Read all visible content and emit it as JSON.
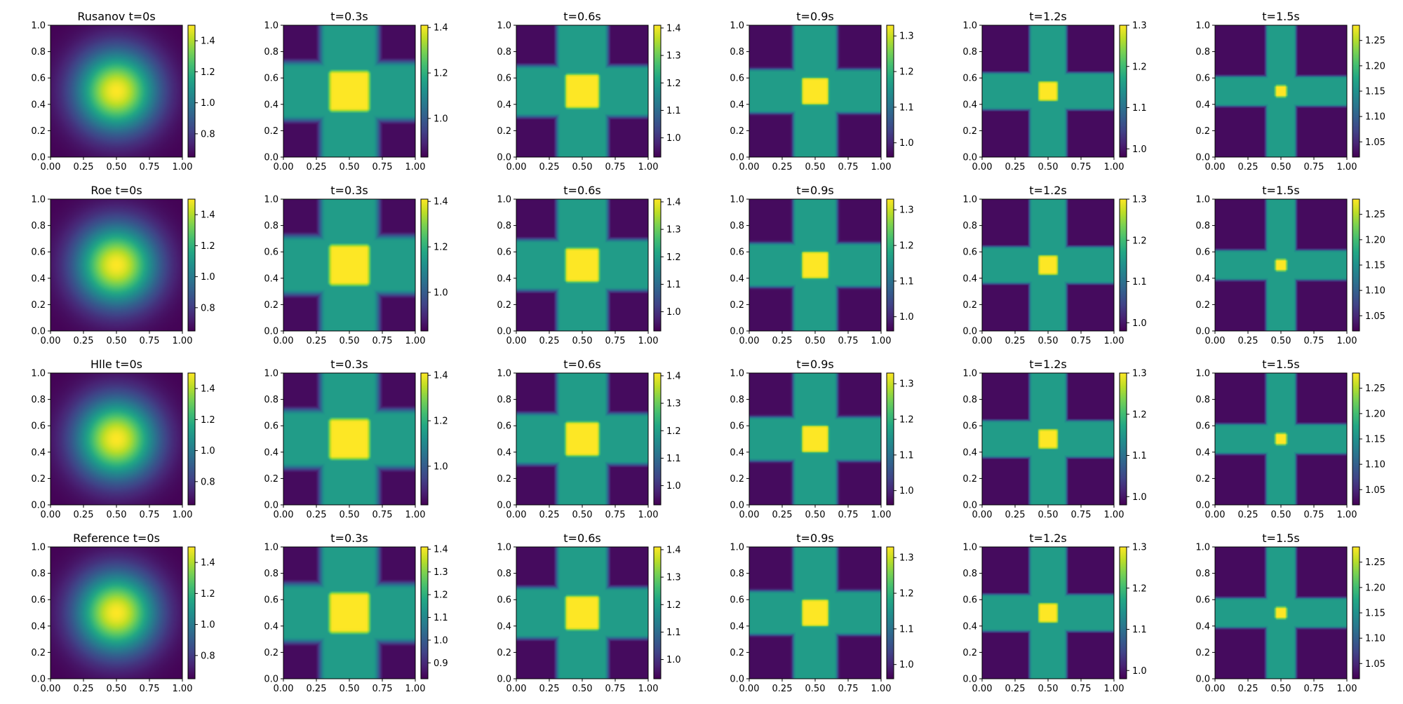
{
  "chart_data": {
    "type": "heatmap",
    "grid": {
      "rows": 4,
      "cols": 6
    },
    "colormap": "viridis",
    "axes": {
      "xlim": [
        0.0,
        1.0
      ],
      "ylim": [
        0.0,
        1.0
      ],
      "xticks": [
        "0.00",
        "0.25",
        "0.50",
        "0.75",
        "1.00"
      ],
      "yticks": [
        "0.0",
        "0.2",
        "0.4",
        "0.6",
        "0.8",
        "1.0"
      ]
    },
    "rows": [
      {
        "method": "Rusanov",
        "panels": [
          {
            "title": "Rusanov t=0s",
            "time": 0.0,
            "clim": [
              0.65,
              1.5
            ],
            "cbar_ticks": [
              "0.8",
              "1.0",
              "1.2",
              "1.4"
            ]
          },
          {
            "title": "t=0.3s",
            "time": 0.3,
            "clim": [
              0.83,
              1.41
            ],
            "cbar_ticks": [
              "1.0",
              "1.2",
              "1.4"
            ]
          },
          {
            "title": "t=0.6s",
            "time": 0.6,
            "clim": [
              0.93,
              1.41
            ],
            "cbar_ticks": [
              "1.0",
              "1.1",
              "1.2",
              "1.3",
              "1.4"
            ]
          },
          {
            "title": "t=0.9s",
            "time": 0.9,
            "clim": [
              0.96,
              1.33
            ],
            "cbar_ticks": [
              "1.0",
              "1.1",
              "1.2",
              "1.3"
            ]
          },
          {
            "title": "t=1.2s",
            "time": 1.2,
            "clim": [
              0.98,
              1.3
            ],
            "cbar_ticks": [
              "1.0",
              "1.1",
              "1.2",
              "1.3"
            ]
          },
          {
            "title": "t=1.5s",
            "time": 1.5,
            "clim": [
              1.02,
              1.28
            ],
            "cbar_ticks": [
              "1.05",
              "1.10",
              "1.15",
              "1.20",
              "1.25"
            ]
          }
        ]
      },
      {
        "method": "Roe",
        "panels": [
          {
            "title": "Roe t=0s",
            "time": 0.0,
            "clim": [
              0.65,
              1.5
            ],
            "cbar_ticks": [
              "0.8",
              "1.0",
              "1.2",
              "1.4"
            ]
          },
          {
            "title": "t=0.3s",
            "time": 0.3,
            "clim": [
              0.83,
              1.41
            ],
            "cbar_ticks": [
              "1.0",
              "1.2",
              "1.4"
            ]
          },
          {
            "title": "t=0.6s",
            "time": 0.6,
            "clim": [
              0.93,
              1.41
            ],
            "cbar_ticks": [
              "1.0",
              "1.1",
              "1.2",
              "1.3",
              "1.4"
            ]
          },
          {
            "title": "t=0.9s",
            "time": 0.9,
            "clim": [
              0.96,
              1.33
            ],
            "cbar_ticks": [
              "1.0",
              "1.1",
              "1.2",
              "1.3"
            ]
          },
          {
            "title": "t=1.2s",
            "time": 1.2,
            "clim": [
              0.98,
              1.3
            ],
            "cbar_ticks": [
              "1.0",
              "1.1",
              "1.2",
              "1.3"
            ]
          },
          {
            "title": "t=1.5s",
            "time": 1.5,
            "clim": [
              1.02,
              1.28
            ],
            "cbar_ticks": [
              "1.05",
              "1.10",
              "1.15",
              "1.20",
              "1.25"
            ]
          }
        ]
      },
      {
        "method": "Hlle",
        "panels": [
          {
            "title": "Hlle t=0s",
            "time": 0.0,
            "clim": [
              0.65,
              1.5
            ],
            "cbar_ticks": [
              "0.8",
              "1.0",
              "1.2",
              "1.4"
            ]
          },
          {
            "title": "t=0.3s",
            "time": 0.3,
            "clim": [
              0.83,
              1.41
            ],
            "cbar_ticks": [
              "1.0",
              "1.2",
              "1.4"
            ]
          },
          {
            "title": "t=0.6s",
            "time": 0.6,
            "clim": [
              0.93,
              1.41
            ],
            "cbar_ticks": [
              "1.0",
              "1.1",
              "1.2",
              "1.3",
              "1.4"
            ]
          },
          {
            "title": "t=0.9s",
            "time": 0.9,
            "clim": [
              0.96,
              1.33
            ],
            "cbar_ticks": [
              "1.0",
              "1.1",
              "1.2",
              "1.3"
            ]
          },
          {
            "title": "t=1.2s",
            "time": 1.2,
            "clim": [
              0.98,
              1.3
            ],
            "cbar_ticks": [
              "1.0",
              "1.1",
              "1.2",
              "1.3"
            ]
          },
          {
            "title": "t=1.5s",
            "time": 1.5,
            "clim": [
              1.02,
              1.28
            ],
            "cbar_ticks": [
              "1.05",
              "1.10",
              "1.15",
              "1.20",
              "1.25"
            ]
          }
        ]
      },
      {
        "method": "Reference",
        "panels": [
          {
            "title": "Reference t=0s",
            "time": 0.0,
            "clim": [
              0.65,
              1.5
            ],
            "cbar_ticks": [
              "0.8",
              "1.0",
              "1.2",
              "1.4"
            ]
          },
          {
            "title": "t=0.3s",
            "time": 0.3,
            "clim": [
              0.83,
              1.41
            ],
            "cbar_ticks": [
              "0.9",
              "1.0",
              "1.1",
              "1.2",
              "1.3",
              "1.4"
            ]
          },
          {
            "title": "t=0.6s",
            "time": 0.6,
            "clim": [
              0.93,
              1.41
            ],
            "cbar_ticks": [
              "1.0",
              "1.1",
              "1.2",
              "1.3",
              "1.4"
            ]
          },
          {
            "title": "t=0.9s",
            "time": 0.9,
            "clim": [
              0.96,
              1.33
            ],
            "cbar_ticks": [
              "1.0",
              "1.1",
              "1.2",
              "1.3"
            ]
          },
          {
            "title": "t=1.2s",
            "time": 1.2,
            "clim": [
              0.98,
              1.3
            ],
            "cbar_ticks": [
              "1.0",
              "1.1",
              "1.2",
              "1.3"
            ]
          },
          {
            "title": "t=1.5s",
            "time": 1.5,
            "clim": [
              1.02,
              1.28
            ],
            "cbar_ticks": [
              "1.05",
              "1.10",
              "1.15",
              "1.20",
              "1.25"
            ]
          }
        ]
      }
    ]
  }
}
